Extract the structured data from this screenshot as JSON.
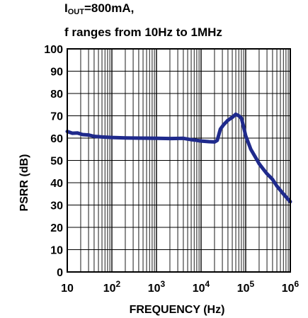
{
  "chart_data": {
    "type": "line",
    "title_main": "I",
    "title_sub": "OUT",
    "title_rest": "=800mA,",
    "subtitle": "f ranges from 10Hz to 1MHz",
    "xlabel": "FREQUENCY (Hz)",
    "ylabel": "PSRR (dB)",
    "x_scale": "log",
    "xlim": [
      10,
      1000000
    ],
    "ylim": [
      0,
      100
    ],
    "grid": true,
    "y_ticks": [
      0,
      10,
      20,
      30,
      40,
      50,
      60,
      70,
      80,
      90,
      100
    ],
    "x_ticks": [
      {
        "value": 10,
        "base": "10",
        "exp": ""
      },
      {
        "value": 100,
        "base": "10",
        "exp": "2"
      },
      {
        "value": 1000,
        "base": "10",
        "exp": "3"
      },
      {
        "value": 10000,
        "base": "10",
        "exp": "4"
      },
      {
        "value": 100000,
        "base": "10",
        "exp": "5"
      },
      {
        "value": 1000000,
        "base": "10",
        "exp": "6"
      }
    ],
    "series": [
      {
        "color": "#1f2a8c",
        "x": [
          10,
          13,
          17,
          22,
          30,
          40,
          60,
          100,
          200,
          400,
          1000,
          2000,
          4000,
          6000,
          8000,
          10000,
          15000,
          20000,
          23000,
          27000,
          32000,
          40000,
          50000,
          60000,
          70000,
          80000,
          90000,
          100000,
          130000,
          170000,
          200000,
          250000,
          300000,
          400000,
          500000,
          700000,
          1000000
        ],
        "y": [
          63,
          62.2,
          62.3,
          61.6,
          61.4,
          60.8,
          60.5,
          60.3,
          60.1,
          60,
          59.9,
          59.8,
          59.9,
          59.3,
          59,
          58.7,
          58.4,
          58.3,
          59,
          64,
          66,
          68,
          69.3,
          70.7,
          70,
          69,
          65,
          61,
          55,
          51,
          48.5,
          46,
          44,
          41.5,
          38.5,
          35,
          31.5
        ]
      }
    ]
  }
}
